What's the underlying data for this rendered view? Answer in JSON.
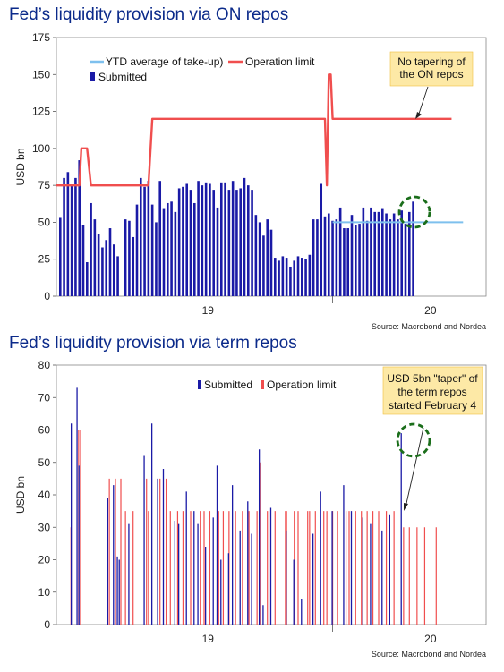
{
  "charts": [
    {
      "title": "Fed’s liquidity provision via ON repos",
      "ylabel": "USD bn",
      "source": "Source: Macrobond and Nordea",
      "x_ticks": [
        "19",
        "20"
      ],
      "legend": {
        "ytd": "YTD average of take-up)",
        "limit": "Operation limit",
        "submitted": "Submitted"
      },
      "annotation": [
        "No tapering of",
        "the ON repos"
      ]
    },
    {
      "title": "Fed’s liquidity provision via term repos",
      "ylabel": "USD bn",
      "source": "Source: Macrobond and Nordea",
      "x_ticks": [
        "19",
        "20"
      ],
      "legend": {
        "submitted": "Submitted",
        "limit": "Operation limit"
      },
      "annotation": [
        "USD 5bn \"taper\" of",
        "the term repos",
        "started February 4"
      ]
    }
  ],
  "colors": {
    "title": "#0b2a8a",
    "submitted": "#1a1aa6",
    "limit": "#f04e4e",
    "ytd": "#7ec0ee",
    "annotation_bg": "#fde9a6",
    "circle": "#1b6e1b"
  },
  "chart_data": [
    {
      "type": "bar",
      "title": "Fed’s liquidity provision via ON repos",
      "ylabel": "USD bn",
      "ylim": [
        0,
        175
      ],
      "yticks": [
        0,
        25,
        50,
        75,
        100,
        125,
        150,
        175
      ],
      "x_tick_labels": [
        "19",
        "20"
      ],
      "x_tick_positions": [
        39.5,
        97.5
      ],
      "x_range": [
        0,
        112
      ],
      "series": [
        {
          "name": "Submitted",
          "kind": "bar",
          "values": [
            53,
            80,
            84,
            75,
            80,
            92,
            48,
            23,
            63,
            52,
            42,
            33,
            38,
            46,
            35,
            27,
            52,
            51,
            40,
            62,
            80,
            74,
            78,
            62,
            50,
            78,
            59,
            63,
            64,
            57,
            73,
            74,
            76,
            72,
            63,
            78,
            75,
            77,
            76,
            72,
            60,
            77,
            77,
            72,
            78,
            72,
            73,
            80,
            75,
            72,
            55,
            50,
            41,
            52,
            45,
            26,
            24,
            27,
            26,
            20,
            24,
            27,
            26,
            25,
            28,
            52,
            52,
            76,
            54,
            56,
            51,
            52,
            60,
            46,
            46,
            55,
            48,
            49,
            60,
            51,
            60,
            57,
            57,
            59,
            56,
            52,
            56,
            52,
            58,
            49,
            57,
            64
          ],
          "x": [
            1,
            2,
            3,
            4,
            5,
            6,
            7,
            8,
            9,
            10,
            11,
            12,
            13,
            14,
            15,
            16,
            18,
            19,
            20,
            21,
            22,
            23,
            24,
            25,
            26,
            27,
            28,
            29,
            30,
            31,
            32,
            33,
            34,
            35,
            36,
            37,
            38,
            39,
            40,
            41,
            42,
            43,
            44,
            45,
            46,
            47,
            48,
            49,
            50,
            51,
            52,
            53,
            54,
            55,
            56,
            57,
            58,
            59,
            60,
            61,
            62,
            63,
            64,
            65,
            66,
            67,
            68,
            69,
            70,
            71,
            72,
            73,
            74,
            75,
            76,
            77,
            78,
            79,
            80,
            81,
            82,
            83,
            84,
            85,
            86,
            87,
            88,
            89,
            90,
            91,
            92,
            93
          ]
        },
        {
          "name": "Operation limit",
          "kind": "line",
          "x": [
            0,
            6,
            6.5,
            8,
            9,
            24,
            25,
            25.5,
            70,
            70.5,
            71,
            71.5,
            72,
            72.5,
            73,
            103
          ],
          "values": [
            75,
            75,
            100,
            100,
            75,
            75,
            120,
            120,
            120,
            75,
            150,
            150,
            120,
            120,
            120,
            120
          ]
        },
        {
          "name": "YTD average of take-up)",
          "kind": "line",
          "x": [
            72,
            106
          ],
          "values": [
            50,
            50
          ]
        }
      ]
    },
    {
      "type": "bar",
      "title": "Fed’s liquidity provision via term repos",
      "ylabel": "USD bn",
      "ylim": [
        0,
        80
      ],
      "yticks": [
        0,
        10,
        20,
        30,
        40,
        50,
        60,
        70,
        80
      ],
      "x_tick_labels": [
        "19",
        "20"
      ],
      "x_tick_positions": [
        39.5,
        97.5
      ],
      "x_range": [
        0,
        112
      ],
      "series": [
        {
          "name": "Submitted",
          "kind": "bar",
          "x": [
            4,
            5.5,
            6,
            13.5,
            15,
            16,
            16.5,
            19,
            23,
            25,
            26.5,
            28,
            31,
            32,
            34,
            36,
            37,
            39,
            41,
            42,
            43,
            45,
            46,
            48,
            50,
            51,
            53,
            54,
            56,
            60,
            62,
            64,
            67,
            69,
            72,
            75,
            77,
            80,
            82,
            85,
            87,
            90
          ],
          "values": [
            62,
            73,
            49,
            39,
            43,
            21,
            20,
            31,
            52,
            62,
            45,
            48,
            32,
            31,
            41,
            35,
            31,
            24,
            33,
            49,
            20,
            22,
            43,
            29,
            38,
            28,
            54,
            6,
            36,
            29,
            20,
            8,
            28,
            41,
            35,
            43,
            35,
            33,
            31,
            29,
            34,
            59
          ]
        },
        {
          "name": "Operation limit",
          "kind": "bar",
          "x": [
            3.8,
            5.8,
            6.3,
            13.8,
            15.4,
            16.8,
            18,
            20,
            23.5,
            24,
            27,
            28.6,
            29.7,
            31.6,
            33,
            35,
            37.5,
            38.5,
            40,
            42.3,
            43.5,
            45,
            46.7,
            48.5,
            50.2,
            52.3,
            53.2,
            55,
            57,
            59.7,
            60,
            62,
            63,
            65.5,
            66,
            67.5,
            69.7,
            70.5,
            72,
            73.3,
            75.5,
            76.3,
            78,
            79.5,
            81,
            82.5,
            84,
            86,
            88,
            90.5,
            92,
            94,
            96,
            99
          ],
          "values": [
            30,
            60,
            60,
            45,
            45,
            45,
            35,
            35,
            45,
            35,
            45,
            45,
            35,
            35,
            35,
            35,
            35,
            35,
            35,
            35,
            35,
            35,
            35,
            35,
            35,
            35,
            50,
            35,
            35,
            35,
            35,
            35,
            35,
            35,
            35,
            35,
            35,
            35,
            35,
            35,
            35,
            35,
            35,
            35,
            35,
            35,
            35,
            35,
            35,
            30,
            30,
            30,
            30,
            30
          ]
        }
      ]
    }
  ]
}
